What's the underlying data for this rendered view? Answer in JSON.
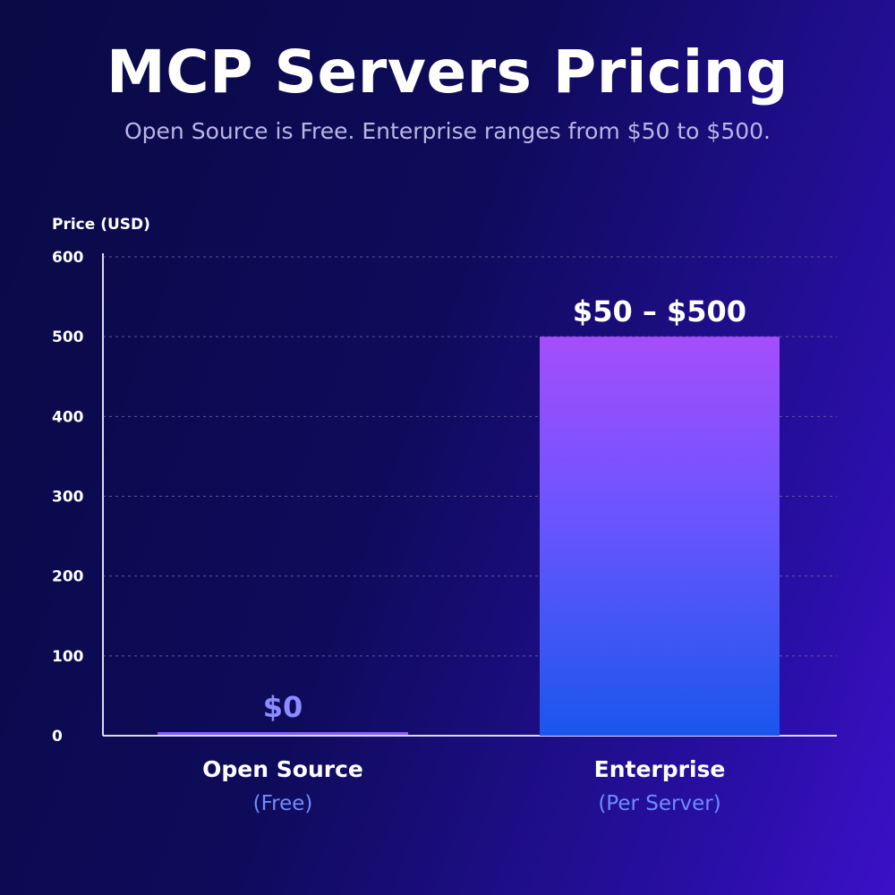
{
  "title": "MCP Servers Pricing",
  "subtitle": "Open Source is Free. Enterprise ranges from $50 to $500.",
  "colors": {
    "bar_top": "#a64dfb",
    "bar_mid": "#6a55ff",
    "bar_bottom": "#1a56ec",
    "zero_bar": "#8a5cf6",
    "zero_label": "#8b8cff",
    "sub_label": "#6f8cff",
    "grid": "#5a5a96",
    "axis": "#dcdcf0"
  },
  "chart_data": {
    "type": "bar",
    "ylabel": "Price (USD)",
    "ylim": [
      0,
      600
    ],
    "yticks": [
      0,
      100,
      200,
      300,
      400,
      500,
      600
    ],
    "grid": true,
    "categories": [
      "Open Source",
      "Enterprise"
    ],
    "category_sublabels": [
      "(Free)",
      "(Per Server)"
    ],
    "values": [
      0,
      500
    ],
    "value_range": [
      [
        0,
        0
      ],
      [
        50,
        500
      ]
    ],
    "data_labels": [
      "$0",
      "$50 – $500"
    ]
  }
}
